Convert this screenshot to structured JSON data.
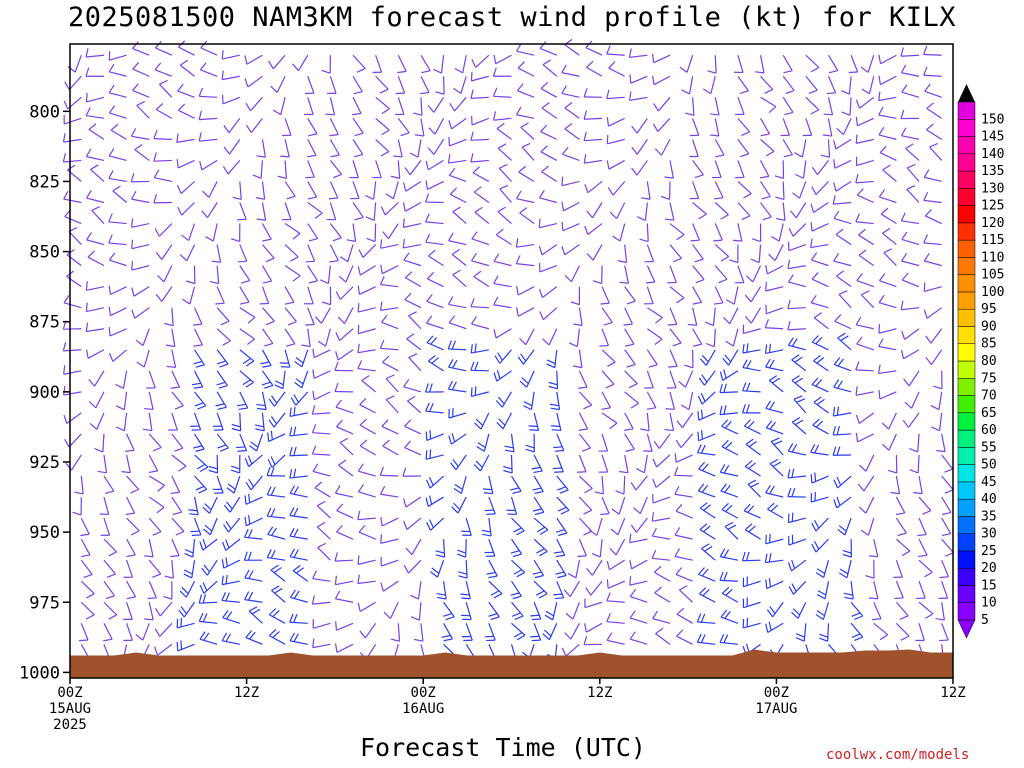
{
  "title": "2025081500 NAM3KM forecast wind profile (kt) for KILX",
  "xlabel": "Forecast Time (UTC)",
  "credit": "coolwx.com/models",
  "chart_data": {
    "type": "wind-barb time-height",
    "y_axis": {
      "ticks": [
        800,
        825,
        850,
        875,
        900,
        925,
        950,
        975,
        1000
      ],
      "range_hpa": [
        776,
        1002
      ],
      "inverted": true
    },
    "x_axis": {
      "range_hours": [
        0,
        60
      ],
      "ticks": [
        {
          "hour": 0,
          "line1": "00Z",
          "line2": "15AUG",
          "line3": "2025"
        },
        {
          "hour": 12,
          "line1": "12Z",
          "line2": "",
          "line3": ""
        },
        {
          "hour": 24,
          "line1": "00Z",
          "line2": "16AUG",
          "line3": ""
        },
        {
          "hour": 36,
          "line1": "12Z",
          "line2": "",
          "line3": ""
        },
        {
          "hour": 48,
          "line1": "00Z",
          "line2": "17AUG",
          "line3": ""
        },
        {
          "hour": 60,
          "line1": "12Z",
          "line2": "",
          "line3": ""
        }
      ]
    },
    "colorbar": {
      "levels_kt": [
        5,
        10,
        15,
        20,
        25,
        30,
        35,
        40,
        45,
        50,
        55,
        60,
        65,
        70,
        75,
        80,
        85,
        90,
        95,
        100,
        105,
        110,
        115,
        120,
        125,
        130,
        135,
        140,
        145,
        150
      ],
      "colors": [
        "#8a00ff",
        "#6a00ff",
        "#3c00ff",
        "#0010ff",
        "#0040ff",
        "#0070ff",
        "#00a0ff",
        "#00c8ff",
        "#00e6e6",
        "#00f0b0",
        "#00f080",
        "#00f040",
        "#40f000",
        "#80f000",
        "#c0ff00",
        "#ffff00",
        "#ffe000",
        "#ffc000",
        "#ffa000",
        "#ff9000",
        "#ff7800",
        "#ff6000",
        "#ff3000",
        "#ff0000",
        "#ff0030",
        "#ff0060",
        "#ff0090",
        "#ff00b0",
        "#ff00d0",
        "#e000e0"
      ]
    },
    "terrain_color": "#a0522d",
    "terrain_top_hpa": 994,
    "barb_color": "#7b3fe8",
    "barb_color_strong": "#2a3cf0"
  }
}
